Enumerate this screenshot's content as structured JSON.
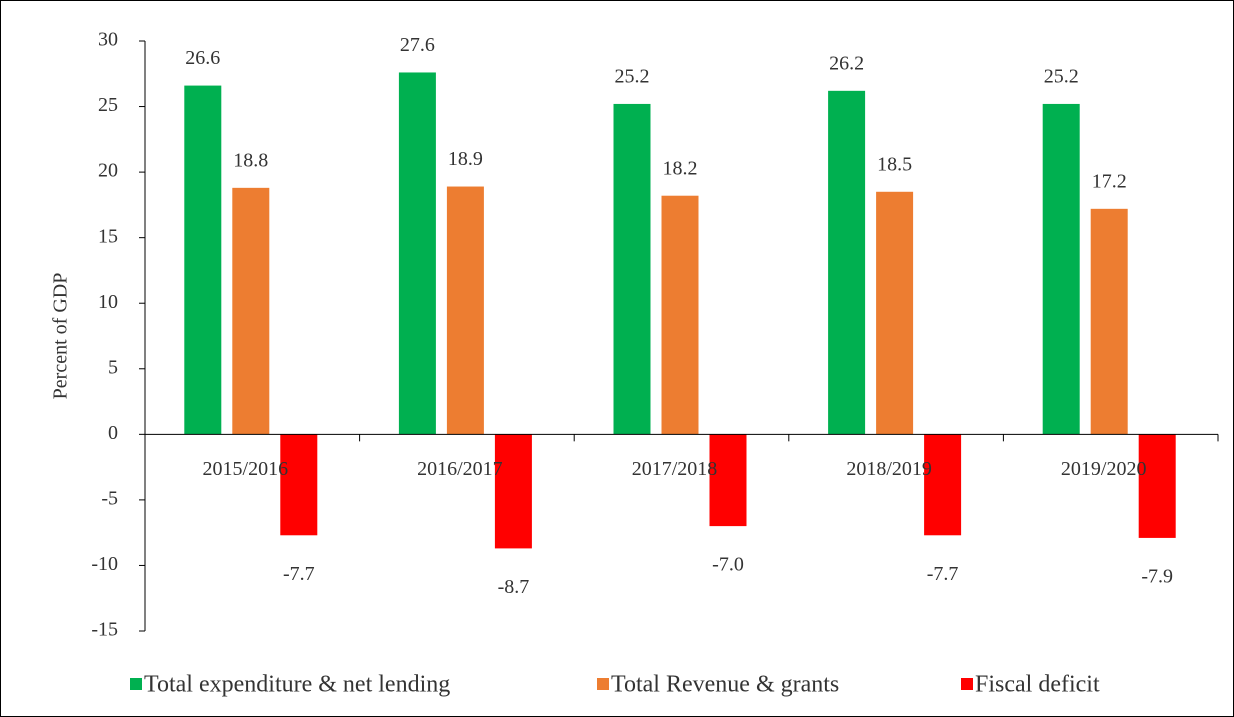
{
  "chart_data": {
    "type": "bar",
    "ylabel": "Percent of GDP",
    "categories": [
      "2015/2016",
      "2016/2017",
      "2017/2018",
      "2018/2019",
      "2019/2020"
    ],
    "series": [
      {
        "name": "Total expenditure & net lending",
        "color": "#00b050",
        "values": [
          26.6,
          27.6,
          25.2,
          26.2,
          25.2
        ]
      },
      {
        "name": "Total Revenue & grants",
        "color": "#ed7d31",
        "values": [
          18.8,
          18.9,
          18.2,
          18.5,
          17.2
        ]
      },
      {
        "name": "Fiscal deficit",
        "color": "#ff0000",
        "values": [
          -7.7,
          -8.7,
          -7,
          -7.7,
          -7.9
        ],
        "value_labels": [
          "-7.7",
          "-8.7",
          "-7.0",
          "-7.7",
          "-7.9"
        ]
      }
    ],
    "ylim": [
      -15,
      30
    ],
    "yticks": [
      -15,
      -10,
      -5,
      0,
      5,
      10,
      15,
      20,
      25,
      30
    ],
    "legend": "bottom"
  }
}
